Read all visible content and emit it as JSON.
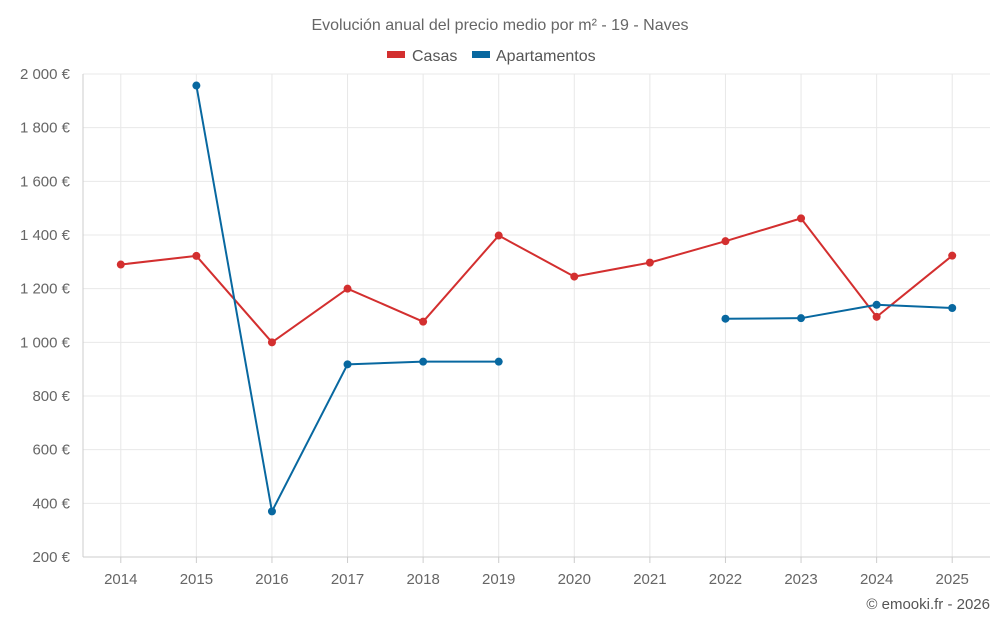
{
  "chart_data": {
    "type": "line",
    "title": "Evolución anual del precio medio por m² - 19 - Naves",
    "categories": [
      "2014",
      "2015",
      "2016",
      "2017",
      "2018",
      "2019",
      "2020",
      "2021",
      "2022",
      "2023",
      "2024",
      "2025"
    ],
    "y_ticks": [
      "200 €",
      "400 €",
      "600 €",
      "800 €",
      "1 000 €",
      "1 200 €",
      "1 400 €",
      "1 600 €",
      "1 800 €",
      "2 000 €"
    ],
    "ylim": [
      200,
      2000
    ],
    "legend_position": "top-center",
    "grid": true,
    "series": [
      {
        "name": "Casas",
        "color": "#d32f2f",
        "values": [
          1290,
          1322,
          1000,
          1200,
          1077,
          1398,
          1245,
          1297,
          1377,
          1462,
          1095,
          1323
        ]
      },
      {
        "name": "Apartamentos",
        "color": "#0868a0",
        "values": [
          null,
          1957,
          370,
          918,
          928,
          928,
          null,
          null,
          1088,
          1090,
          1140,
          1128
        ]
      }
    ]
  },
  "credit": "© emooki.fr - 2026"
}
